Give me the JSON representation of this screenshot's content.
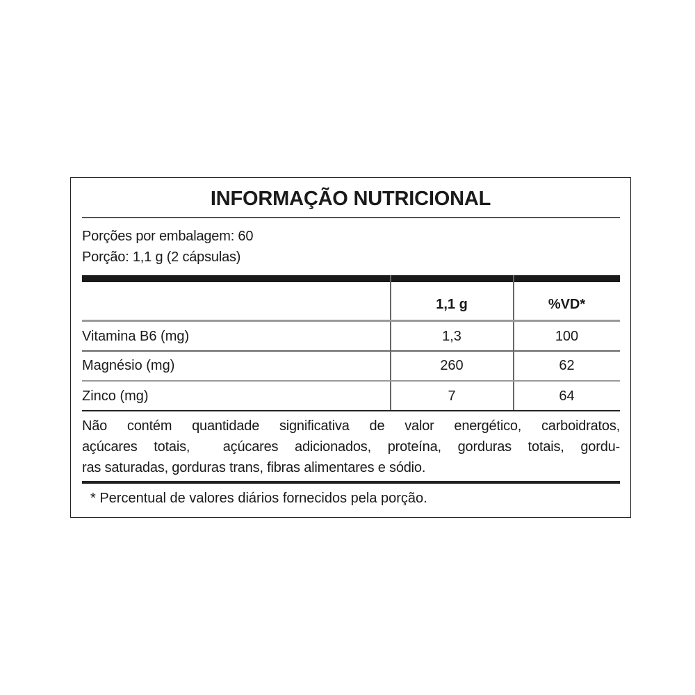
{
  "title": "INFORMAÇÃO NUTRICIONAL",
  "servings_per_package": "Porções por embalagem: 60",
  "serving_size": "Porção: 1,1 g (2 cápsulas)",
  "table": {
    "headers": [
      "",
      "1,1 g",
      "%VD*"
    ],
    "rows": [
      {
        "nutrient": "Vitamina B6 (mg)",
        "amount": "1,3",
        "dv": "100"
      },
      {
        "nutrient": "Magnésio (mg)",
        "amount": "260",
        "dv": "62"
      },
      {
        "nutrient": "Zinco (mg)",
        "amount": "7",
        "dv": "64"
      }
    ]
  },
  "note_lines": [
    "Não contém quantidade significativa de valor energético, carboidratos,",
    "açúcares totais,  açúcares adicionados, proteína, gorduras totais, gordu-",
    "ras saturadas, gorduras trans, fibras alimentares e sódio."
  ],
  "footnote": "* Percentual de valores diários fornecidos pela porção."
}
